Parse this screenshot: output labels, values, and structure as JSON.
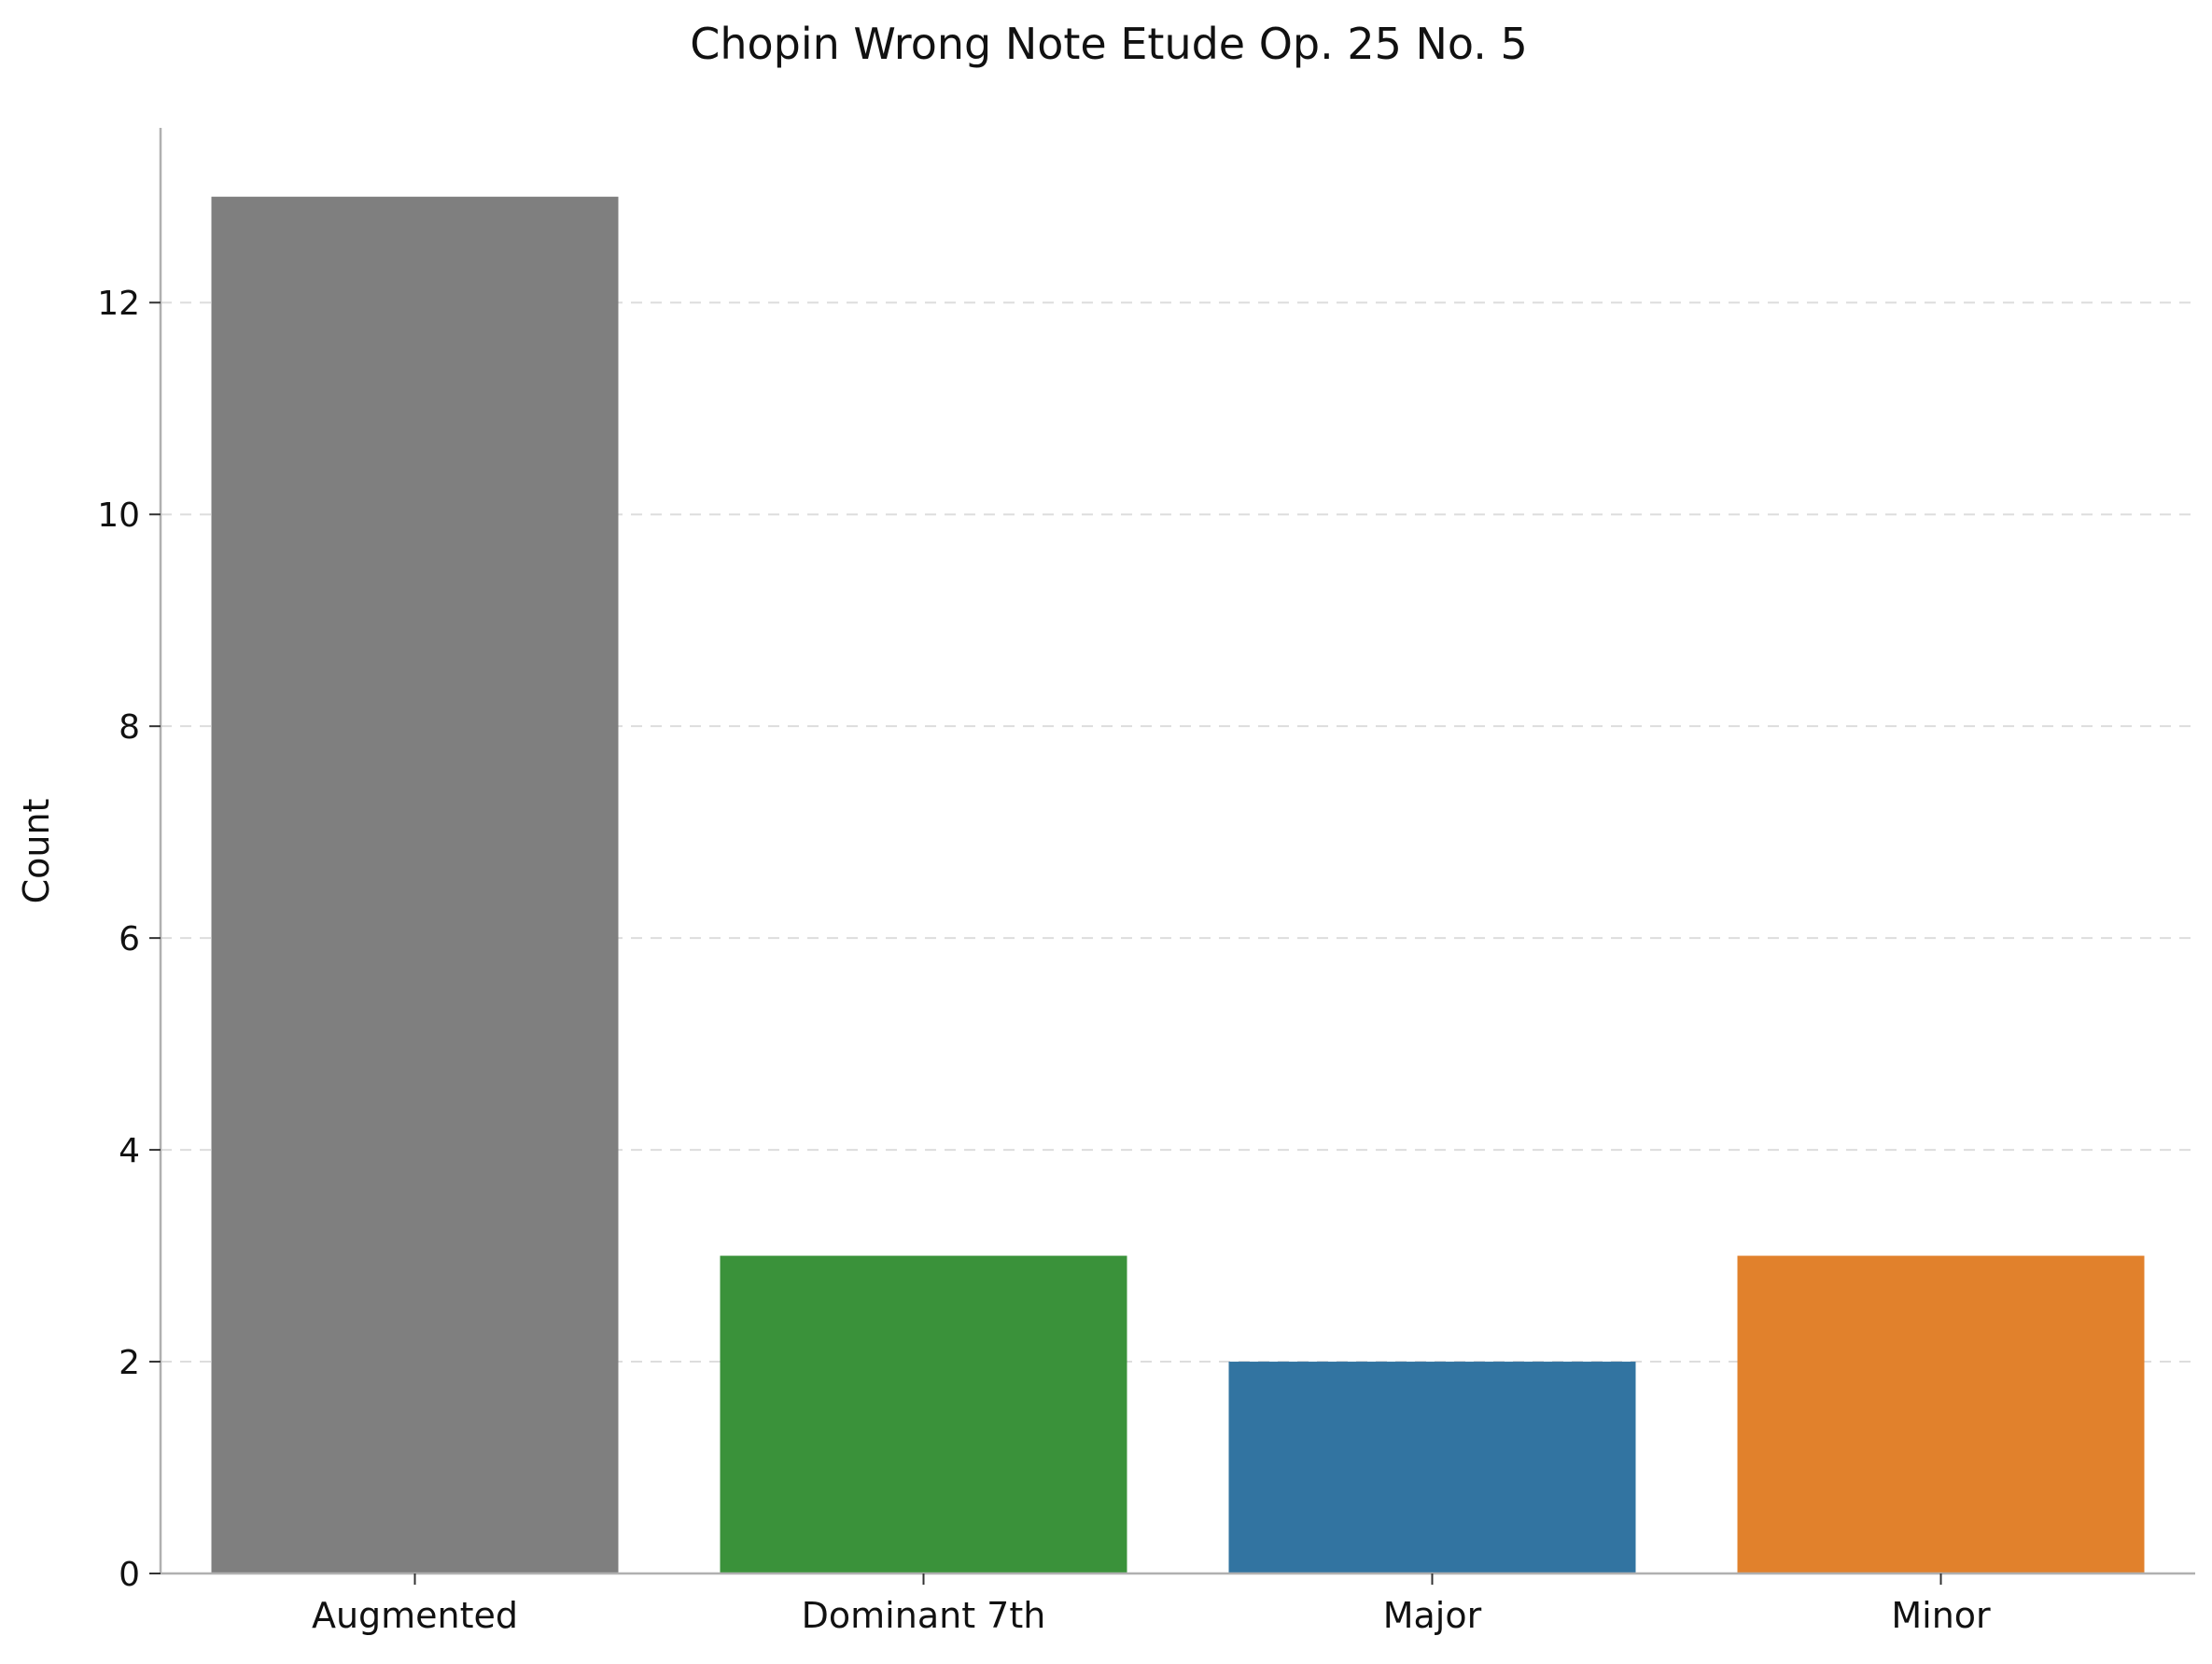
{
  "chart_data": {
    "type": "bar",
    "title": "Chopin Wrong Note Etude Op. 25 No. 5",
    "xlabel": "",
    "ylabel": "Count",
    "categories": [
      "Augmented",
      "Dominant 7th",
      "Major",
      "Minor"
    ],
    "values": [
      13,
      3,
      2,
      3
    ],
    "colors": [
      "#7f7f7f",
      "#3a923a",
      "#3274a1",
      "#e1812c"
    ],
    "ylim": [
      0,
      13.65
    ],
    "yticks": [
      0,
      2,
      4,
      6,
      8,
      10,
      12
    ],
    "grid": "y-dashed",
    "legend": "none"
  }
}
